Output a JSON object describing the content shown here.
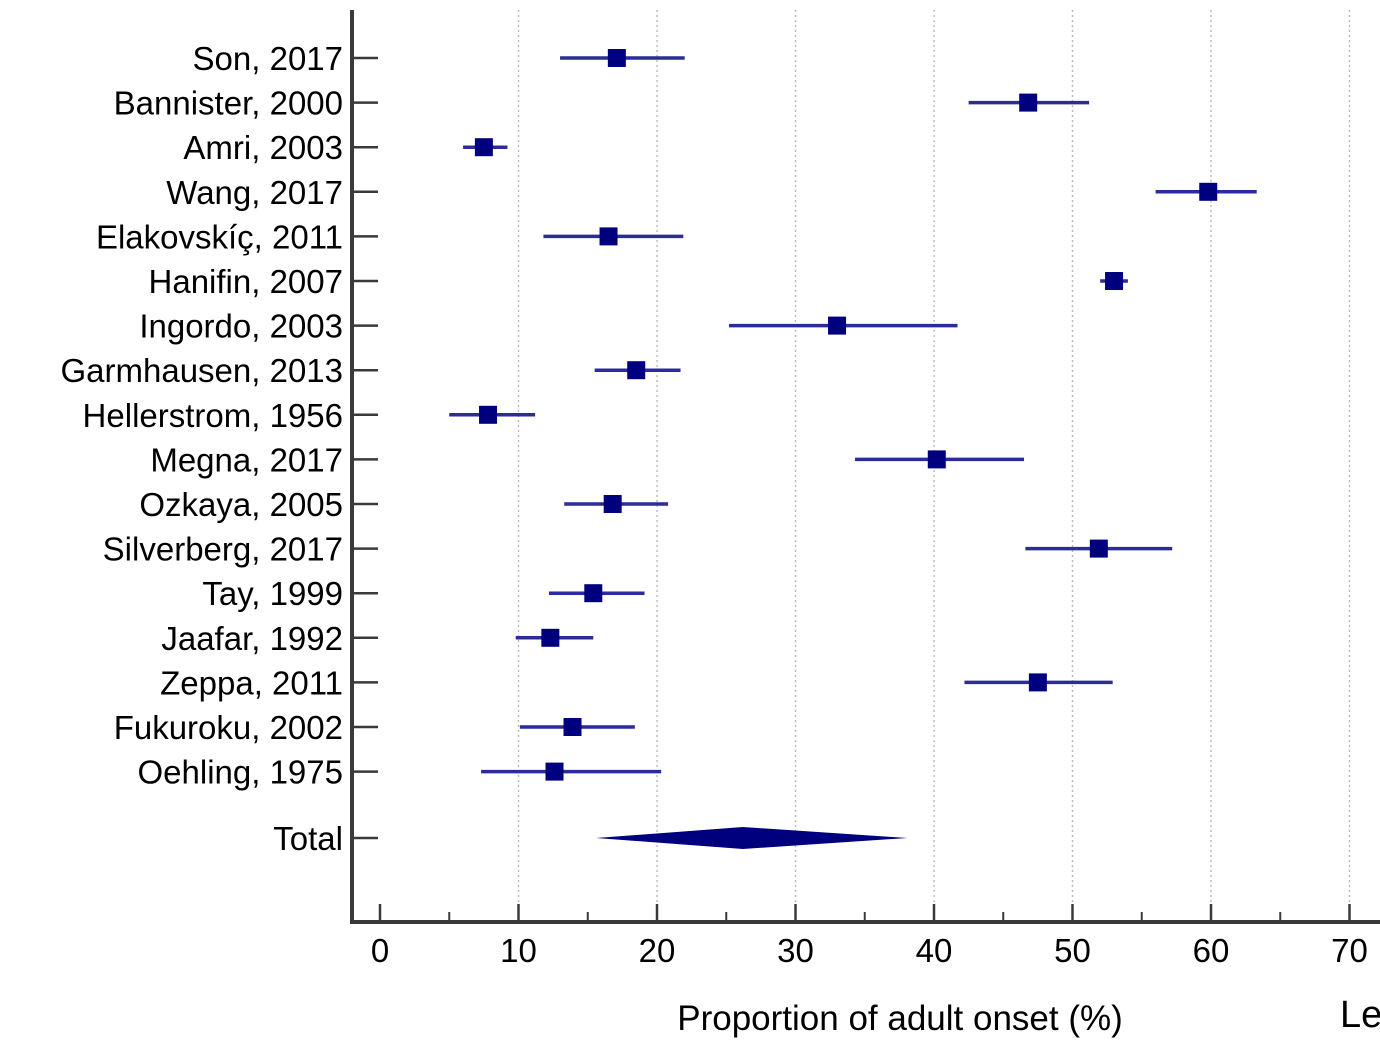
{
  "chart_data": {
    "type": "forest",
    "xlabel": "Proportion of adult onset (%)",
    "xlim": [
      0,
      70
    ],
    "xticks": [
      0,
      10,
      20,
      30,
      40,
      50,
      60,
      70
    ],
    "grid": "vertical dotted lines at each major tick",
    "marker_color": "#00007f",
    "line_color": "#2b2b9a",
    "studies": [
      {
        "label": "Son, 2017",
        "estimate": 17.1,
        "lower": 13.0,
        "upper": 22.0
      },
      {
        "label": "Bannister, 2000",
        "estimate": 46.8,
        "lower": 42.5,
        "upper": 51.2
      },
      {
        "label": "Amri, 2003",
        "estimate": 7.5,
        "lower": 6.0,
        "upper": 9.2
      },
      {
        "label": "Wang, 2017",
        "estimate": 59.8,
        "lower": 56.0,
        "upper": 63.3
      },
      {
        "label": "Elakovskíç, 2011",
        "estimate": 16.5,
        "lower": 11.8,
        "upper": 21.9
      },
      {
        "label": "Hanifin, 2007",
        "estimate": 53.0,
        "lower": 52.0,
        "upper": 54.0
      },
      {
        "label": "Ingordo, 2003",
        "estimate": 33.0,
        "lower": 25.2,
        "upper": 41.7
      },
      {
        "label": "Garmhausen, 2013",
        "estimate": 18.5,
        "lower": 15.5,
        "upper": 21.7
      },
      {
        "label": "Hellerstrom, 1956",
        "estimate": 7.8,
        "lower": 5.0,
        "upper": 11.2
      },
      {
        "label": "Megna, 2017",
        "estimate": 40.2,
        "lower": 34.3,
        "upper": 46.5
      },
      {
        "label": "Ozkaya, 2005",
        "estimate": 16.8,
        "lower": 13.3,
        "upper": 20.8
      },
      {
        "label": "Silverberg, 2017",
        "estimate": 51.9,
        "lower": 46.6,
        "upper": 57.2
      },
      {
        "label": "Tay, 1999",
        "estimate": 15.4,
        "lower": 12.2,
        "upper": 19.1
      },
      {
        "label": "Jaafar, 1992",
        "estimate": 12.3,
        "lower": 9.8,
        "upper": 15.4
      },
      {
        "label": "Zeppa, 2011",
        "estimate": 47.5,
        "lower": 42.2,
        "upper": 52.9
      },
      {
        "label": "Fukuroku, 2002",
        "estimate": 13.9,
        "lower": 10.1,
        "upper": 18.4
      },
      {
        "label": "Oehling, 1975",
        "estimate": 12.6,
        "lower": 7.3,
        "upper": 20.3
      }
    ],
    "total": {
      "label": "Total",
      "estimate": 26.2,
      "lower": 15.6,
      "upper": 38.1
    }
  },
  "corner_text": "Le"
}
